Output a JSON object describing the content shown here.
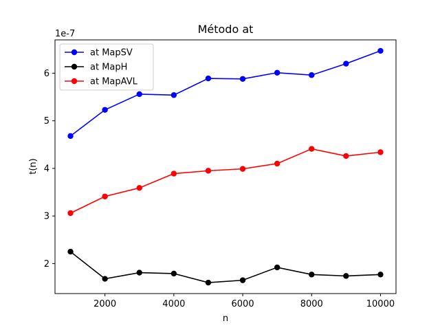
{
  "chart_data": {
    "type": "line",
    "title": "Método at",
    "xlabel": "n",
    "ylabel": "t(n)",
    "y_offset_label": "1e-7",
    "x": [
      1000,
      2000,
      3000,
      4000,
      5000,
      6000,
      7000,
      8000,
      9000,
      10000
    ],
    "xlim": [
      550,
      10450
    ],
    "ylim": [
      1.37,
      6.7
    ],
    "xticks": [
      2000,
      4000,
      6000,
      8000,
      10000
    ],
    "yticks": [
      2,
      3,
      4,
      5,
      6
    ],
    "y_unit_scale": "1e-7",
    "legend_position": "top-left",
    "grid": false,
    "series": [
      {
        "name": "at MapSV",
        "color": "#0000ff",
        "values": [
          4.68,
          5.23,
          5.56,
          5.54,
          5.89,
          5.88,
          6.01,
          5.96,
          6.2,
          6.47
        ]
      },
      {
        "name": "at MapH",
        "color": "#000000",
        "values": [
          2.25,
          1.68,
          1.81,
          1.79,
          1.6,
          1.65,
          1.92,
          1.77,
          1.74,
          1.77
        ]
      },
      {
        "name": "at MapAVL",
        "color": "#ff0000",
        "values": [
          3.06,
          3.41,
          3.59,
          3.89,
          3.95,
          3.99,
          4.1,
          4.41,
          4.26,
          4.34
        ]
      }
    ]
  }
}
